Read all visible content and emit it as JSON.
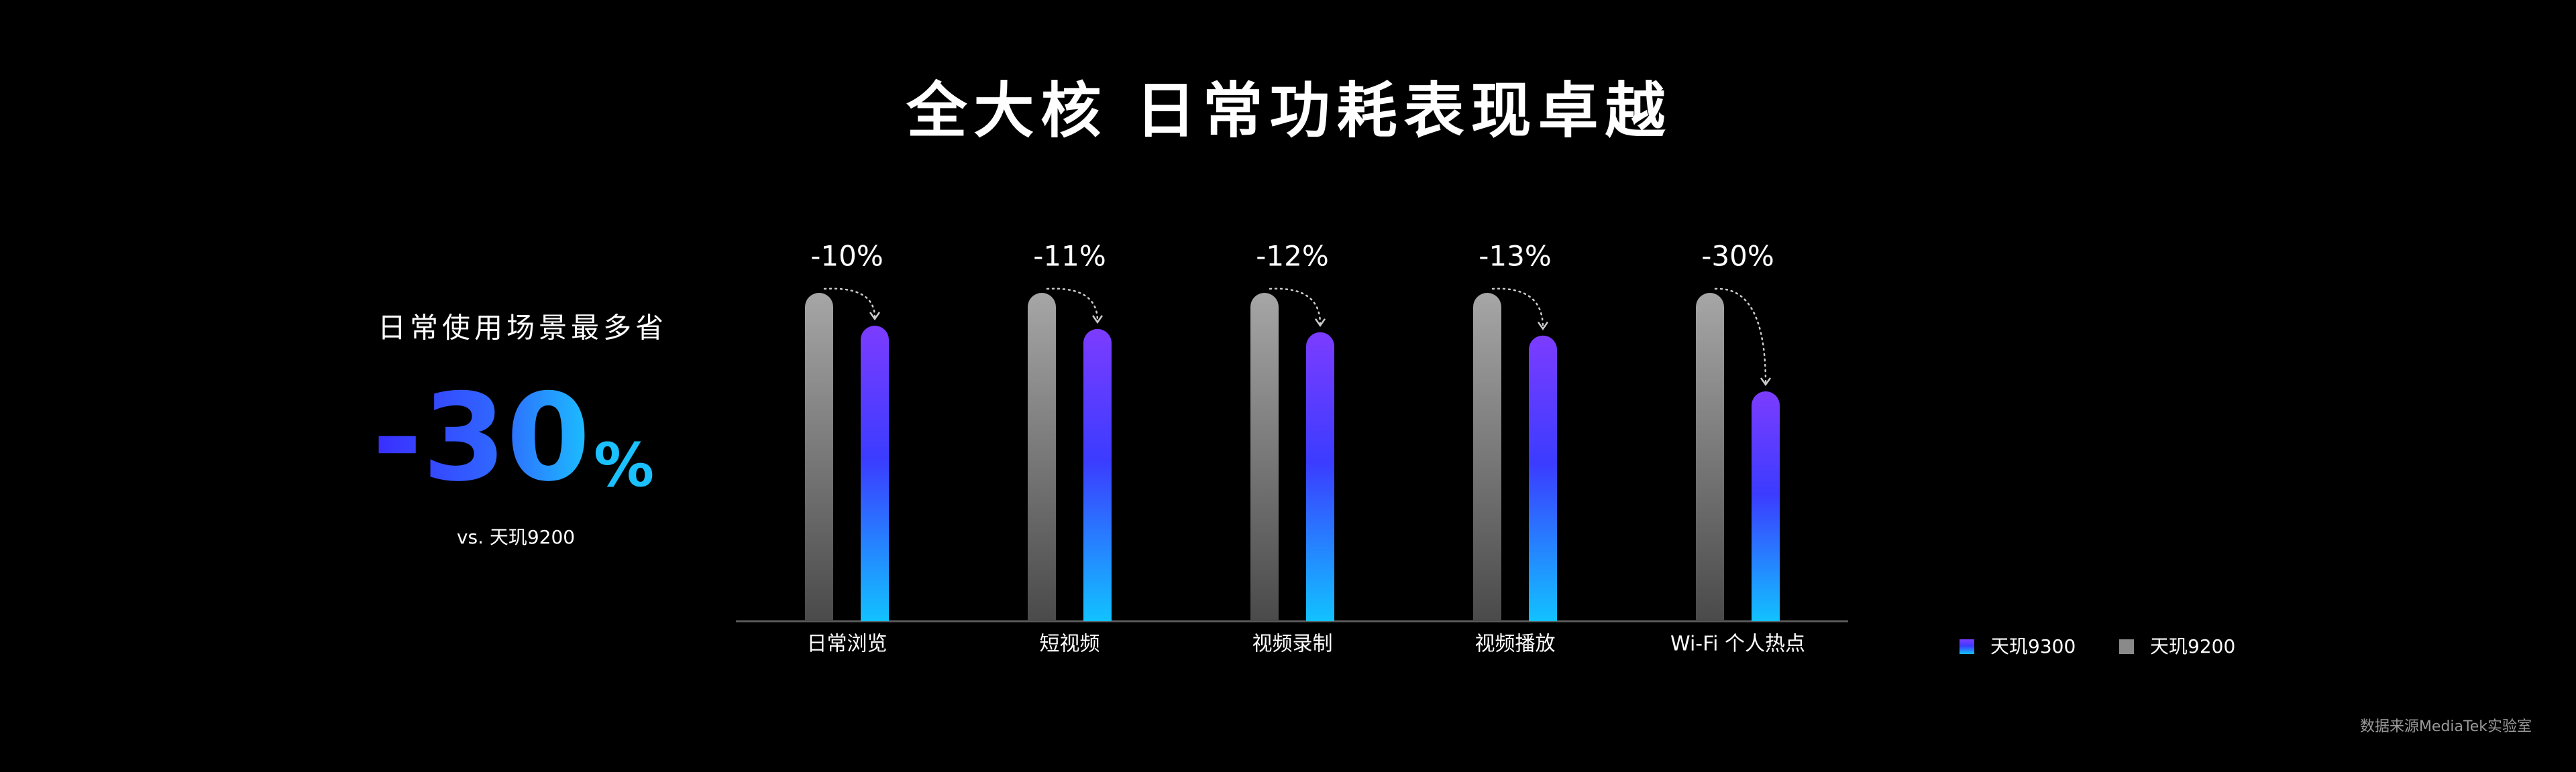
{
  "chart_data": {
    "type": "bar",
    "title": "全大核 日常功耗表现卓越",
    "categories": [
      "日常浏览",
      "短视频",
      "视频录制",
      "视频播放",
      "Wi-Fi 个人热点"
    ],
    "series": [
      {
        "name": "天玑9200",
        "color": "#8a8a8a",
        "values": [
          100,
          100,
          100,
          100,
          100
        ]
      },
      {
        "name": "天玑9300",
        "color": "#3b3cff",
        "values": [
          90,
          89,
          88,
          87,
          70
        ]
      }
    ],
    "annotations": [
      "-10%",
      "-11%",
      "-12%",
      "-13%",
      "-30%"
    ],
    "ylim": [
      0,
      100
    ],
    "side_panel": {
      "heading": "日常使用场景最多省",
      "value": "-30",
      "unit": "%",
      "note": "vs. 天玑9200"
    },
    "source": "数据来源MediaTek实验室"
  }
}
